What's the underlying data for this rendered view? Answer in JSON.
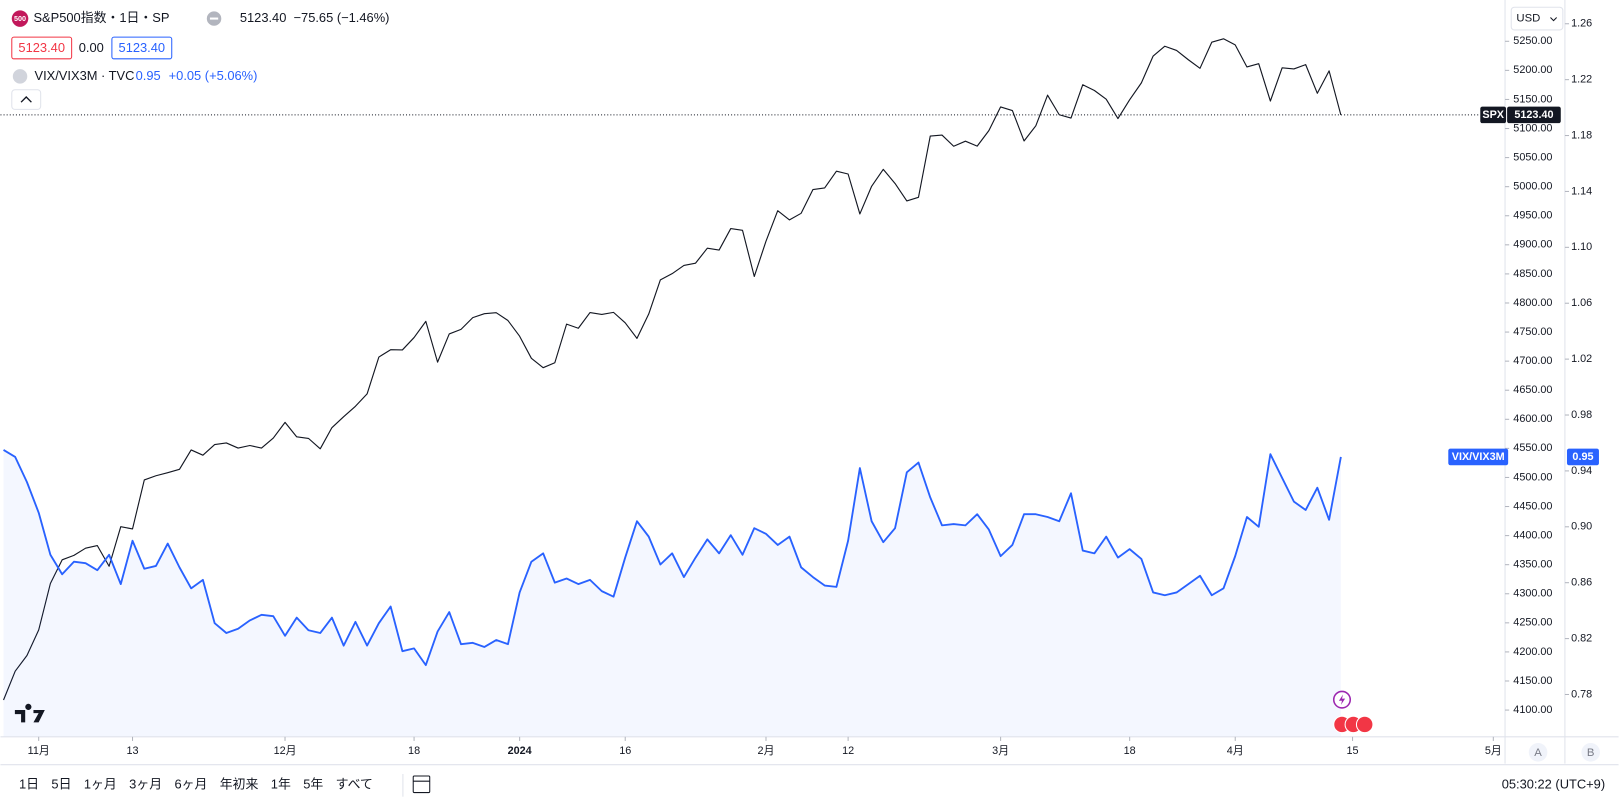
{
  "header": {
    "logo": "500",
    "title": "S&P500指数・1日・SP",
    "quote": "5123.40",
    "change": "−75.65 (−1.46%)",
    "boxes": [
      "5123.40",
      "0.00",
      "5123.40"
    ],
    "compare_name": "VIX/VIX3M · TVC",
    "compare_quote": "0.95",
    "compare_change": "+0.05 (+5.06%)",
    "currency": "USD"
  },
  "chart_data": {
    "type": "line",
    "x": [
      0,
      1,
      2,
      3,
      4,
      5,
      6,
      7,
      8,
      9,
      10,
      11,
      12,
      13,
      14,
      15,
      16,
      17,
      18,
      19,
      20,
      21,
      22,
      23,
      24,
      25,
      26,
      27,
      28,
      29,
      30,
      31,
      32,
      33,
      34,
      35,
      36,
      37,
      38,
      39,
      40,
      41,
      42,
      43,
      44,
      45,
      46,
      47,
      48,
      49,
      50,
      51,
      52,
      53,
      54,
      55,
      56,
      57,
      58,
      59,
      60,
      61,
      62,
      63,
      64,
      65,
      66,
      67,
      68,
      69,
      70,
      71,
      72,
      73,
      74,
      75,
      76,
      77,
      78,
      79,
      80,
      81,
      82,
      83,
      84,
      85,
      86,
      87,
      88,
      89,
      90,
      91,
      92,
      93,
      94,
      95,
      96,
      97,
      98,
      99,
      100,
      101,
      102,
      103,
      104,
      105,
      106,
      107,
      108,
      109,
      110,
      111,
      112,
      113,
      114
    ],
    "xlim": [
      -0.26,
      128
    ],
    "xticks": [
      {
        "value": 3,
        "label": "11月"
      },
      {
        "value": 11,
        "label": "13"
      },
      {
        "value": 24,
        "label": "12月"
      },
      {
        "value": 35,
        "label": "18"
      },
      {
        "value": 44,
        "label": "2024"
      },
      {
        "value": 53,
        "label": "16"
      },
      {
        "value": 65,
        "label": "2月"
      },
      {
        "value": 72,
        "label": "12"
      },
      {
        "value": 85,
        "label": "3月"
      },
      {
        "value": 96,
        "label": "18"
      },
      {
        "value": 105,
        "label": "4月"
      },
      {
        "value": 115,
        "label": "15"
      },
      {
        "value": 127,
        "label": "5月"
      }
    ],
    "ylim": [
      4054,
      5321
    ],
    "yticks": [
      {
        "value": 4100,
        "label": "4100.00"
      },
      {
        "value": 4150,
        "label": "4150.00"
      },
      {
        "value": 4200,
        "label": "4200.00"
      },
      {
        "value": 4250,
        "label": "4250.00"
      },
      {
        "value": 4300,
        "label": "4300.00"
      },
      {
        "value": 4350,
        "label": "4350.00"
      },
      {
        "value": 4400,
        "label": "4400.00"
      },
      {
        "value": 4450,
        "label": "4450.00"
      },
      {
        "value": 4500,
        "label": "4500.00"
      },
      {
        "value": 4550,
        "label": "4550.00"
      },
      {
        "value": 4600,
        "label": "4600.00"
      },
      {
        "value": 4650,
        "label": "4650.00"
      },
      {
        "value": 4700,
        "label": "4700.00"
      },
      {
        "value": 4750,
        "label": "4750.00"
      },
      {
        "value": 4800,
        "label": "4800.00"
      },
      {
        "value": 4850,
        "label": "4850.00"
      },
      {
        "value": 4900,
        "label": "4900.00"
      },
      {
        "value": 4950,
        "label": "4950.00"
      },
      {
        "value": 5000,
        "label": "5000.00"
      },
      {
        "value": 5050,
        "label": "5050.00"
      },
      {
        "value": 5100,
        "label": "5100.00"
      },
      {
        "value": 5150,
        "label": "5150.00"
      },
      {
        "value": 5200,
        "label": "5200.00"
      },
      {
        "value": 5250,
        "label": "5250.00"
      }
    ],
    "y2lim": [
      0.7497,
      1.277
    ],
    "y2ticks": [
      0.78,
      0.82,
      0.86,
      {
        "value": 0.9,
        "label": "0.90"
      },
      0.94,
      0.98,
      1.02,
      1.06,
      {
        "value": 1.1,
        "label": "1.10"
      },
      1.14,
      1.18,
      1.22,
      1.26
    ],
    "series": [
      {
        "name": "SPX",
        "color": "#131722",
        "last_value_label": "5123.40",
        "values": [
          4117.37,
          4166.82,
          4193.8,
          4237.86,
          4317.78,
          4358.34,
          4365.98,
          4378.38,
          4382.78,
          4347.35,
          4415.24,
          4411.55,
          4495.7,
          4502.88,
          4508.24,
          4514.02,
          4547.38,
          4538.19,
          4556.62,
          4559.34,
          4550.43,
          4554.89,
          4550.58,
          4567.8,
          4594.63,
          4569.78,
          4567.18,
          4549.34,
          4585.59,
          4604.37,
          4622.44,
          4643.7,
          4707.09,
          4719.55,
          4719.19,
          4740.56,
          4768.37,
          4698.35,
          4746.75,
          4754.63,
          4774.75,
          4781.58,
          4783.35,
          4769.83,
          4742.83,
          4704.81,
          4688.68,
          4697.24,
          4763.54,
          4756.5,
          4783.45,
          4780.24,
          4783.83,
          4765.98,
          4739.21,
          4780.94,
          4839.81,
          4850.43,
          4864.6,
          4868.55,
          4894.16,
          4890.97,
          4927.93,
          4924.97,
          4845.65,
          4906.19,
          4958.61,
          4942.81,
          4954.23,
          4995.06,
          4997.91,
          5026.61,
          5021.84,
          4953.17,
          5000.62,
          5029.73,
          5005.57,
          4975.51,
          4981.8,
          5087.03,
          5088.8,
          5069.53,
          5078.18,
          5069.76,
          5096.27,
          5137.08,
          5130.95,
          5078.65,
          5104.76,
          5157.36,
          5123.69,
          5117.94,
          5175.27,
          5165.31,
          5150.48,
          5117.09,
          5149.42,
          5178.51,
          5224.62,
          5241.53,
          5234.18,
          5218.19,
          5203.58,
          5248.49,
          5254.35,
          5243.77,
          5205.81,
          5211.49,
          5147.21,
          5204.34,
          5202.39,
          5209.91,
          5160.64,
          5199.06,
          5123.4
        ]
      },
      {
        "name": "VIX/VIX3M",
        "color": "#2962ff",
        "axis": "y2",
        "fill": true,
        "values": [
          0.955,
          0.95,
          0.932,
          0.91,
          0.88,
          0.866,
          0.875,
          0.874,
          0.869,
          0.88,
          0.859,
          0.89,
          0.87,
          0.872,
          0.888,
          0.871,
          0.856,
          0.862,
          0.831,
          0.824,
          0.827,
          0.833,
          0.837,
          0.836,
          0.822,
          0.835,
          0.826,
          0.824,
          0.835,
          0.815,
          0.832,
          0.815,
          0.831,
          0.843,
          0.811,
          0.813,
          0.801,
          0.825,
          0.839,
          0.816,
          0.817,
          0.814,
          0.819,
          0.816,
          0.853,
          0.875,
          0.881,
          0.86,
          0.863,
          0.859,
          0.862,
          0.854,
          0.85,
          0.878,
          0.904,
          0.893,
          0.873,
          0.881,
          0.864,
          0.878,
          0.891,
          0.881,
          0.894,
          0.88,
          0.899,
          0.895,
          0.887,
          0.893,
          0.871,
          0.864,
          0.858,
          0.857,
          0.89,
          0.942,
          0.904,
          0.889,
          0.899,
          0.939,
          0.946,
          0.921,
          0.901,
          0.902,
          0.901,
          0.909,
          0.898,
          0.879,
          0.887,
          0.909,
          0.909,
          0.907,
          0.904,
          0.924,
          0.883,
          0.881,
          0.893,
          0.878,
          0.884,
          0.877,
          0.853,
          0.851,
          0.853,
          0.859,
          0.865,
          0.851,
          0.856,
          0.879,
          0.907,
          0.9,
          0.952,
          0.935,
          0.918,
          0.912,
          0.928,
          0.905,
          0.95
        ]
      }
    ]
  },
  "toolbar": {
    "ranges": [
      "1日",
      "5日",
      "1ヶ月",
      "3ヶ月",
      "6ヶ月",
      "年初来",
      "1年",
      "5年",
      "すべて"
    ],
    "clock": "05:30:22 (UTC+9)",
    "scale_buttons": [
      "A",
      "B"
    ]
  }
}
